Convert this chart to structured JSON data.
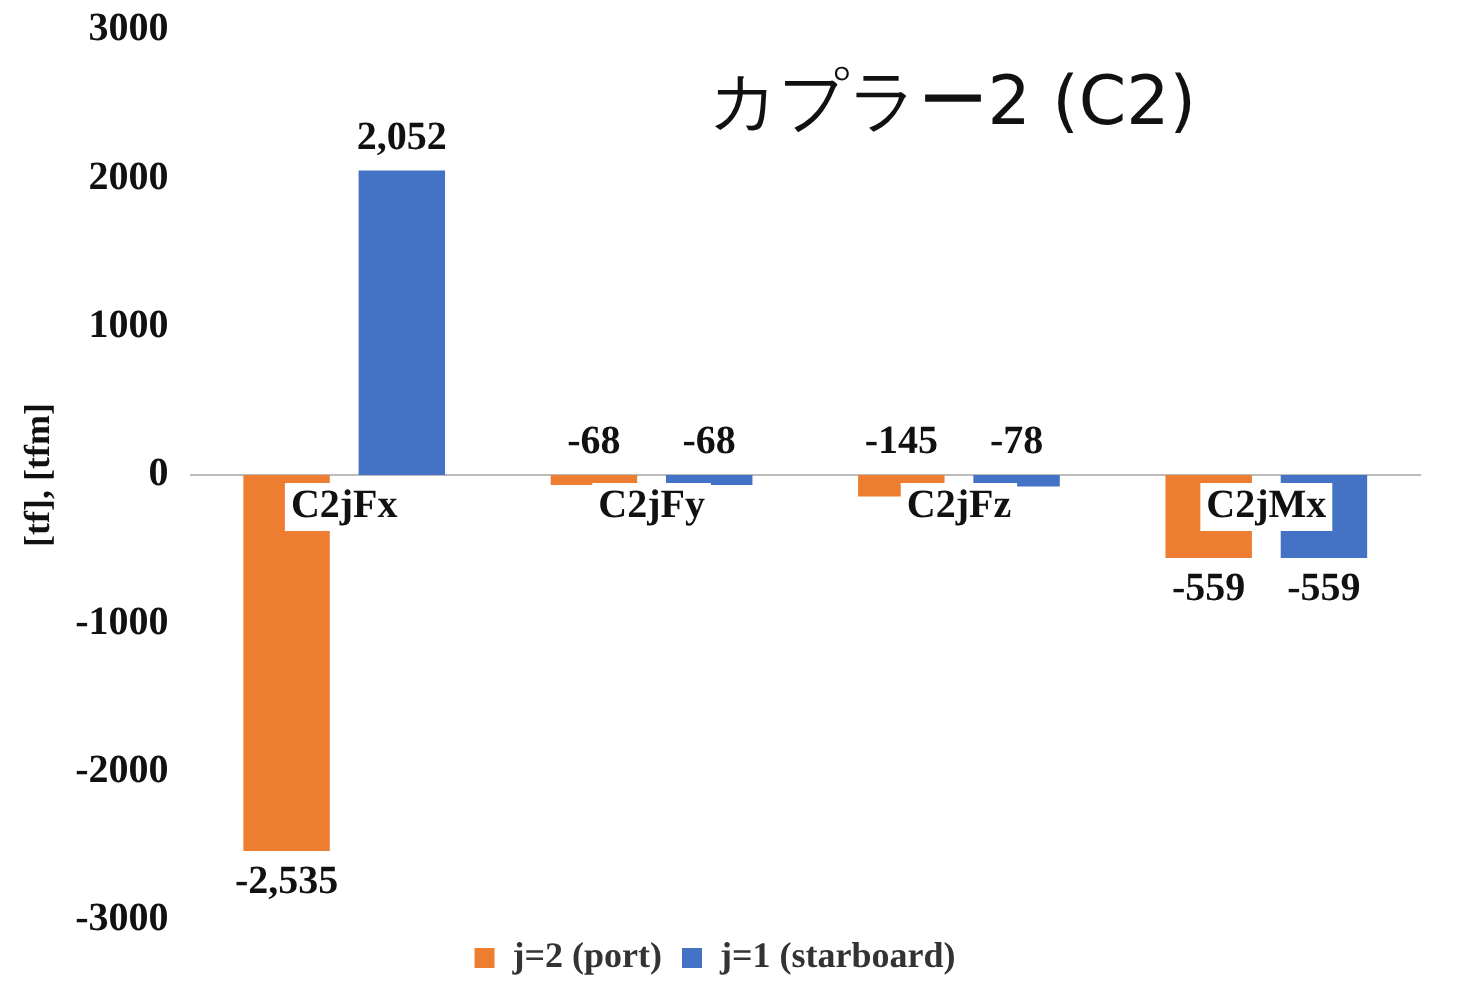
{
  "chart_data": {
    "type": "bar",
    "title": "カプラー2 (C2)",
    "ylabel": "[tf], [tfm]",
    "categories": [
      "C2jFx",
      "C2jFy",
      "C2jFz",
      "C2jMx"
    ],
    "series": [
      {
        "name": "j=2 (port)",
        "color": "#ed7d31",
        "values": [
          -2535,
          -68,
          -145,
          -559
        ],
        "value_labels": [
          "-2,535",
          "-68",
          "-145",
          "-559"
        ]
      },
      {
        "name": "j=1 (starboard)",
        "color": "#4472c4",
        "values": [
          2052,
          -68,
          -78,
          -559
        ],
        "value_labels": [
          "2,052",
          "-68",
          "-78",
          "-559"
        ]
      }
    ],
    "ylim": [
      -3000,
      3000
    ],
    "yticks": [
      -3000,
      -2000,
      -1000,
      0,
      1000,
      2000,
      3000
    ],
    "grid": false,
    "legend": "bottom"
  }
}
